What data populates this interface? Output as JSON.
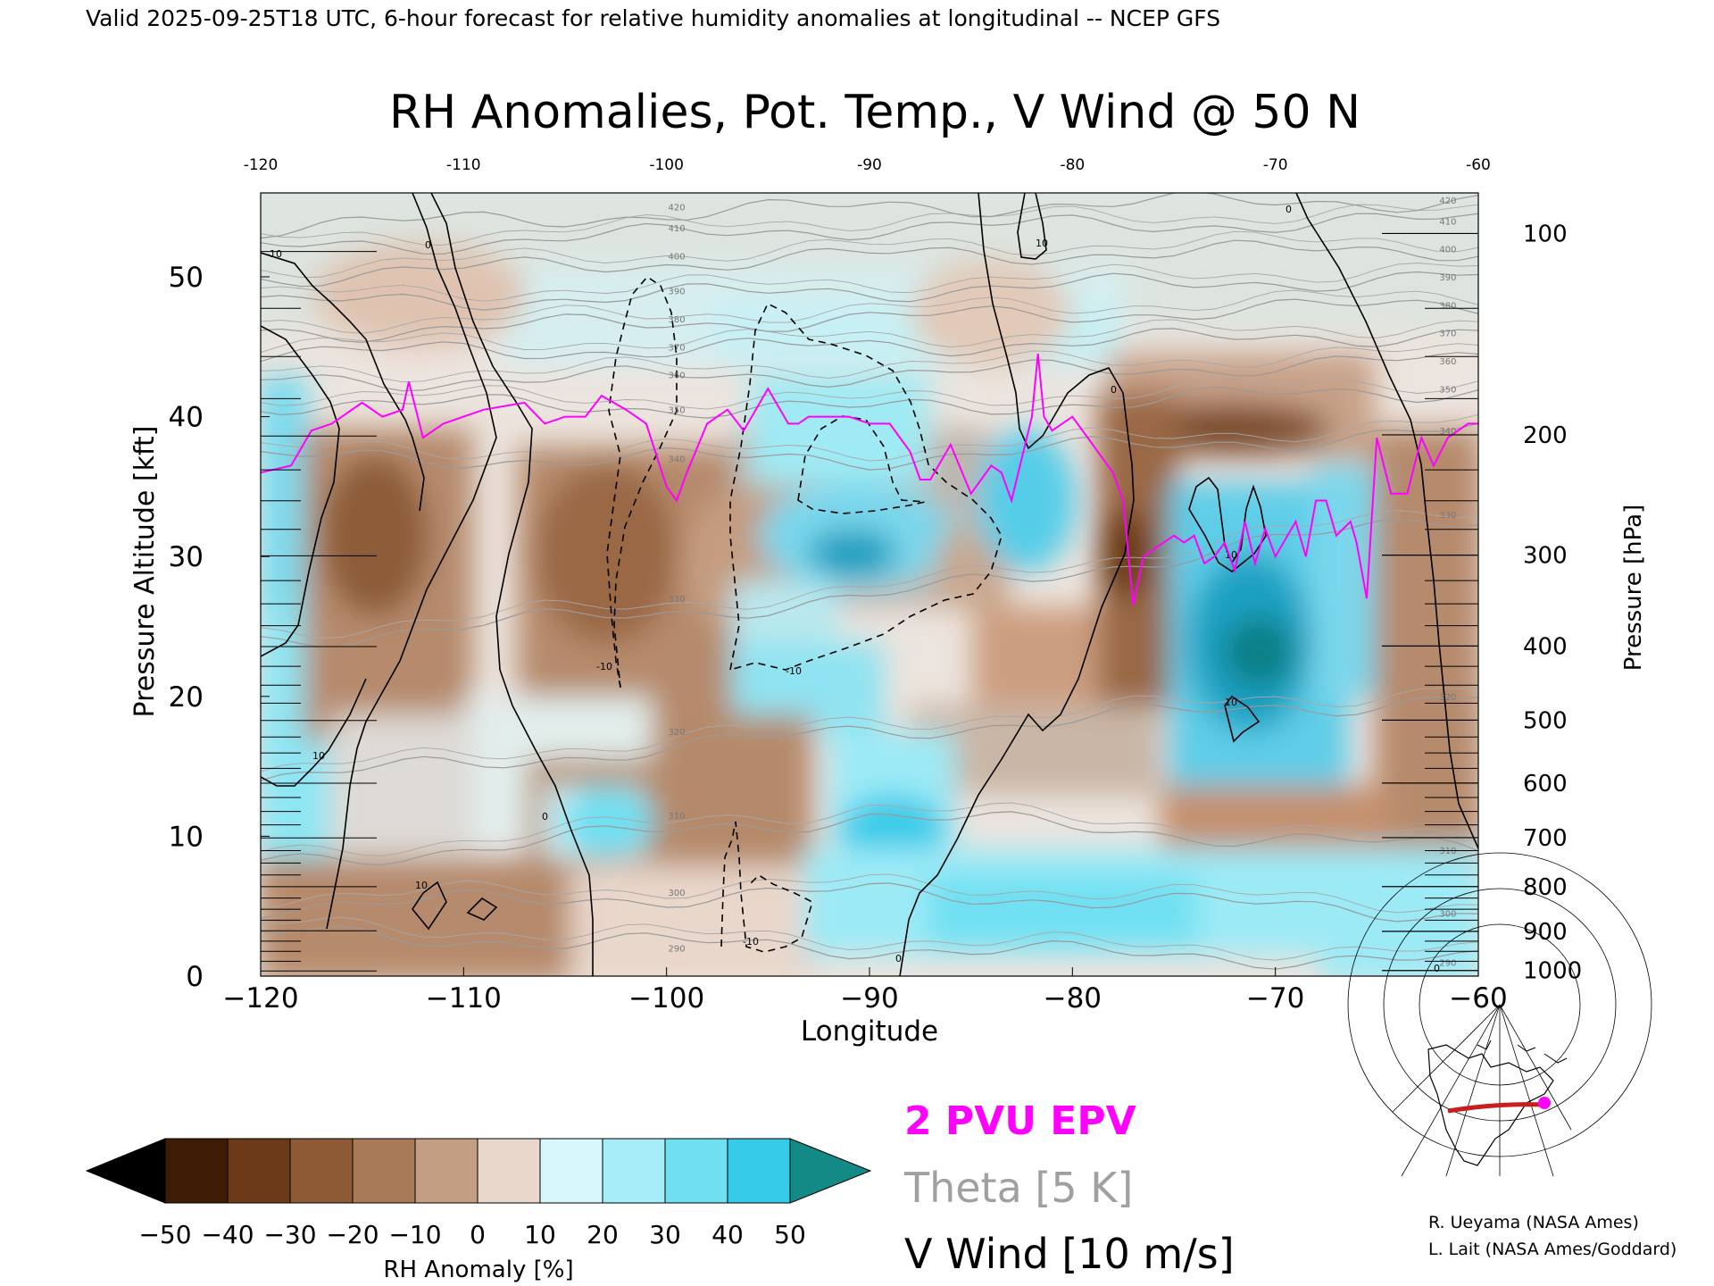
{
  "header": {
    "valid_line": "Valid 2025-09-25T18 UTC, 6-hour forecast for relative humidity anomalies at longitudinal -- NCEP GFS",
    "title": "RH Anomalies, Pot. Temp., V Wind @ 50 N"
  },
  "chart_data": {
    "type": "heatmap",
    "title": "RH Anomalies, Pot. Temp., V Wind @ 50 N",
    "xlabel": "Longitude",
    "ylabel": "Pressure Altitude [kft]",
    "ylabel_right": "Pressure [hPa]",
    "xlim": [
      -120,
      -60
    ],
    "ylim": [
      0,
      56
    ],
    "x_ticks": [
      -120,
      -110,
      -100,
      -90,
      -80,
      -70,
      -60
    ],
    "x_tick_labels": [
      "−120",
      "−110",
      "−100",
      "−90",
      "−80",
      "−70",
      "−60"
    ],
    "top_tick_labels": [
      "-120",
      "-110",
      "-100",
      "-90",
      "-80",
      "-70",
      "-60"
    ],
    "y_ticks": [
      0,
      10,
      20,
      30,
      40,
      50
    ],
    "y_tick_labels": [
      "0",
      "10",
      "20",
      "30",
      "40",
      "50"
    ],
    "pressure_ticks": [
      {
        "hPa": 100,
        "kft": 53.1
      },
      {
        "hPa": 200,
        "kft": 38.7
      },
      {
        "hPa": 300,
        "kft": 30.1
      },
      {
        "hPa": 400,
        "kft": 23.6
      },
      {
        "hPa": 500,
        "kft": 18.3
      },
      {
        "hPa": 600,
        "kft": 13.8
      },
      {
        "hPa": 700,
        "kft": 9.9
      },
      {
        "hPa": 800,
        "kft": 6.4
      },
      {
        "hPa": 900,
        "kft": 3.2
      },
      {
        "hPa": 1000,
        "kft": 0.4
      }
    ],
    "colorbar": {
      "label": "RH Anomaly [%]",
      "tick_labels": [
        "−50",
        "−40",
        "−30",
        "−20",
        "−10",
        "0",
        "10",
        "20",
        "30",
        "40",
        "50"
      ],
      "colors": [
        "#3e1b05",
        "#6b3a18",
        "#8e5a35",
        "#a87a58",
        "#c49e83",
        "#e9d7cb",
        "#d8f7fb",
        "#a6edf7",
        "#6fe0f2",
        "#36cbe9",
        "#16a2c4",
        "#0e8084",
        "#1a8a8a",
        "#000000"
      ]
    },
    "theta_contours_K": [
      290,
      300,
      310,
      320,
      330,
      340,
      350,
      360,
      370,
      380,
      390,
      400,
      410,
      420
    ],
    "vwind_contours_ms": [
      -10,
      0,
      10
    ],
    "epv_2pvu_line": {
      "lon": [
        -120,
        -118.5,
        -117.5,
        -116.5,
        -115,
        -114,
        -113,
        -112.7,
        -112,
        -111,
        -109,
        -107,
        -106,
        -105,
        -104,
        -103.2,
        -102,
        -101,
        -100,
        -99.5,
        -99,
        -98,
        -97,
        -96.2,
        -95,
        -94,
        -93.5,
        -93,
        -92,
        -91,
        -90,
        -89,
        -88,
        -87.5,
        -87,
        -86,
        -85,
        -84,
        -83.5,
        -83,
        -82,
        -81.7,
        -81.4,
        -81,
        -80,
        -79,
        -78.5,
        -78,
        -77.5,
        -77.3,
        -77,
        -76.5,
        -76,
        -75,
        -74.5,
        -74,
        -73.5,
        -73,
        -72.5,
        -72,
        -71.5,
        -71,
        -70.5,
        -70,
        -69,
        -68.5,
        -68,
        -67.5,
        -67,
        -66.3,
        -66,
        -65.5,
        -65,
        -64.3,
        -63.5,
        -62.8,
        -62.2,
        -61.5,
        -61,
        -60.5,
        -60
      ],
      "kft": [
        36,
        36.5,
        39,
        39.5,
        41,
        40,
        40.5,
        42.5,
        38.5,
        39.5,
        40.5,
        41,
        39.5,
        40,
        40,
        41.5,
        40.5,
        39.5,
        35,
        34,
        36,
        39.5,
        40.5,
        39,
        42,
        39.5,
        39.5,
        40,
        40,
        40,
        39.5,
        39.5,
        37.5,
        35.5,
        35.5,
        38,
        34.5,
        36.5,
        36,
        34,
        40,
        44.5,
        40,
        39,
        40,
        38,
        37,
        36,
        34,
        31,
        26.5,
        30,
        30.5,
        31.5,
        31,
        31.5,
        29.5,
        30,
        31,
        29,
        32.5,
        29.5,
        32,
        30,
        32.5,
        30,
        34,
        34,
        31.5,
        32.5,
        31,
        27,
        38.5,
        34.5,
        34.5,
        38.5,
        36.5,
        38.5,
        39,
        39.5,
        39.5
      ]
    }
  },
  "legend": {
    "epv_label": "2 PVU EPV",
    "epv_color": "#ff00ff",
    "theta_label": "Theta [5 K]",
    "theta_color": "#a0a0a0",
    "wind_label": "V Wind [10 m/s]",
    "wind_color": "#000000"
  },
  "credits": {
    "line1": "R. Ueyama (NASA Ames)",
    "line2": "L. Lait (NASA Ames/Goddard)"
  },
  "inset_map": {
    "marker_color": "#ff00ff",
    "section_color": "#c81e1e"
  }
}
